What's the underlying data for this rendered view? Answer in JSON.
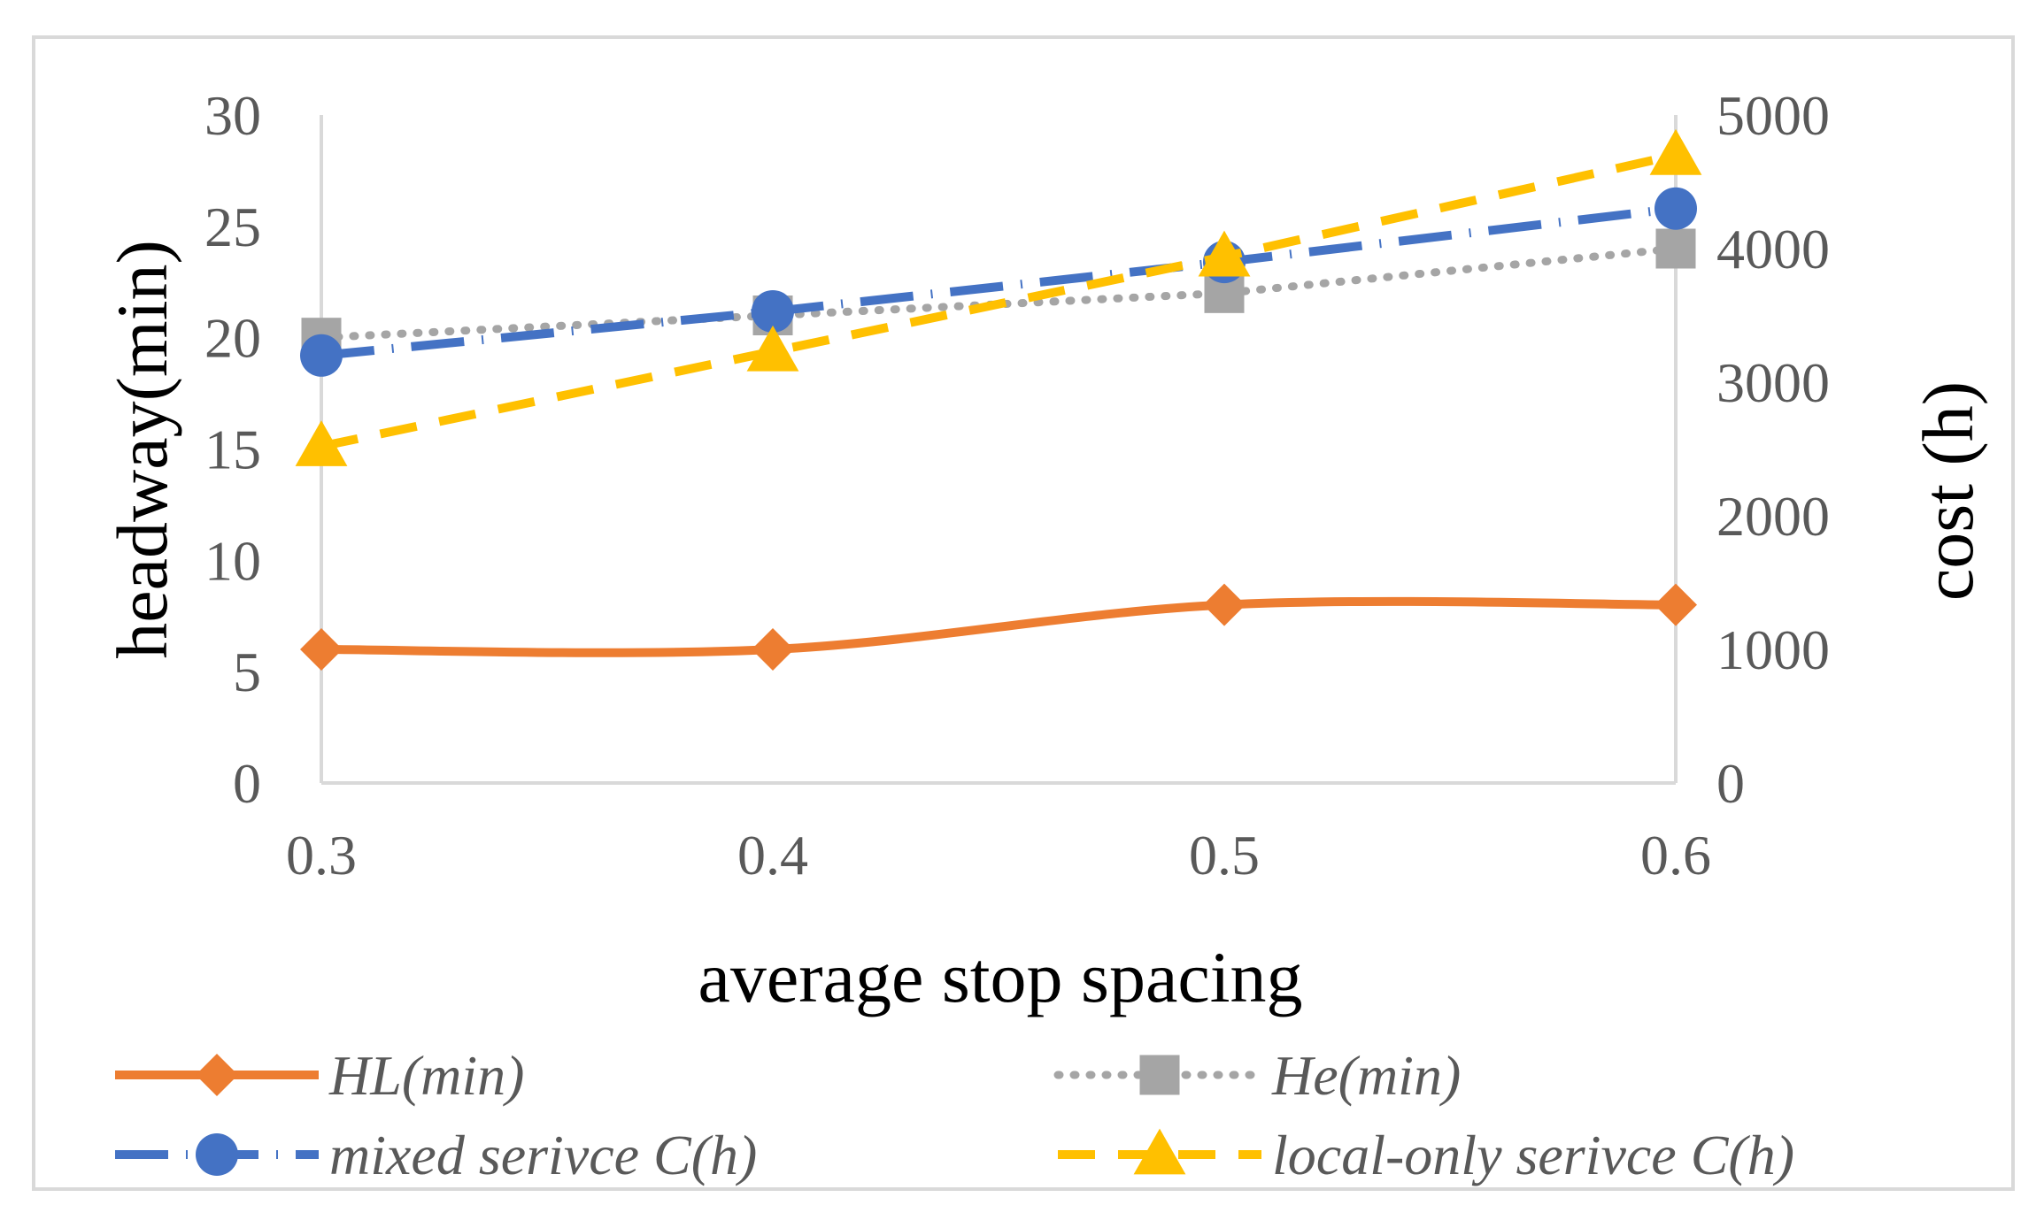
{
  "chart_data": {
    "type": "line",
    "x": [
      0.3,
      0.4,
      0.5,
      0.6
    ],
    "x_tick_labels": [
      "0.3",
      "0.4",
      "0.5",
      "0.6"
    ],
    "xlabel": "average stop spacing",
    "ylabel_left": "headway(min)",
    "ylabel_right": "cost (h)",
    "ylim_left": [
      0,
      30
    ],
    "ylim_right": [
      0,
      5000
    ],
    "left_ticks": [
      "0",
      "5",
      "10",
      "15",
      "20",
      "25",
      "30"
    ],
    "right_ticks": [
      "0",
      "1000",
      "2000",
      "3000",
      "4000",
      "5000"
    ],
    "grid": false,
    "legend_position": "bottom",
    "series": [
      {
        "name": "HL(min)",
        "axis": "left",
        "values": [
          6,
          6,
          8,
          8
        ],
        "color": "#ed7d31",
        "style": "solid",
        "marker": "diamond"
      },
      {
        "name": "He(min)",
        "axis": "left",
        "values": [
          20,
          21,
          22,
          24
        ],
        "color": "#a5a5a5",
        "style": "dotted",
        "marker": "square"
      },
      {
        "name": "mixed serivce C(h)",
        "axis": "right",
        "values": [
          3200,
          3530,
          3900,
          4300
        ],
        "color": "#4472c4",
        "style": "long-dash-dot",
        "marker": "circle"
      },
      {
        "name": "local-only serivce C(h)",
        "axis": "right",
        "values": [
          2520,
          3230,
          3940,
          4700
        ],
        "color": "#ffc000",
        "style": "dashed",
        "marker": "triangle"
      }
    ]
  }
}
